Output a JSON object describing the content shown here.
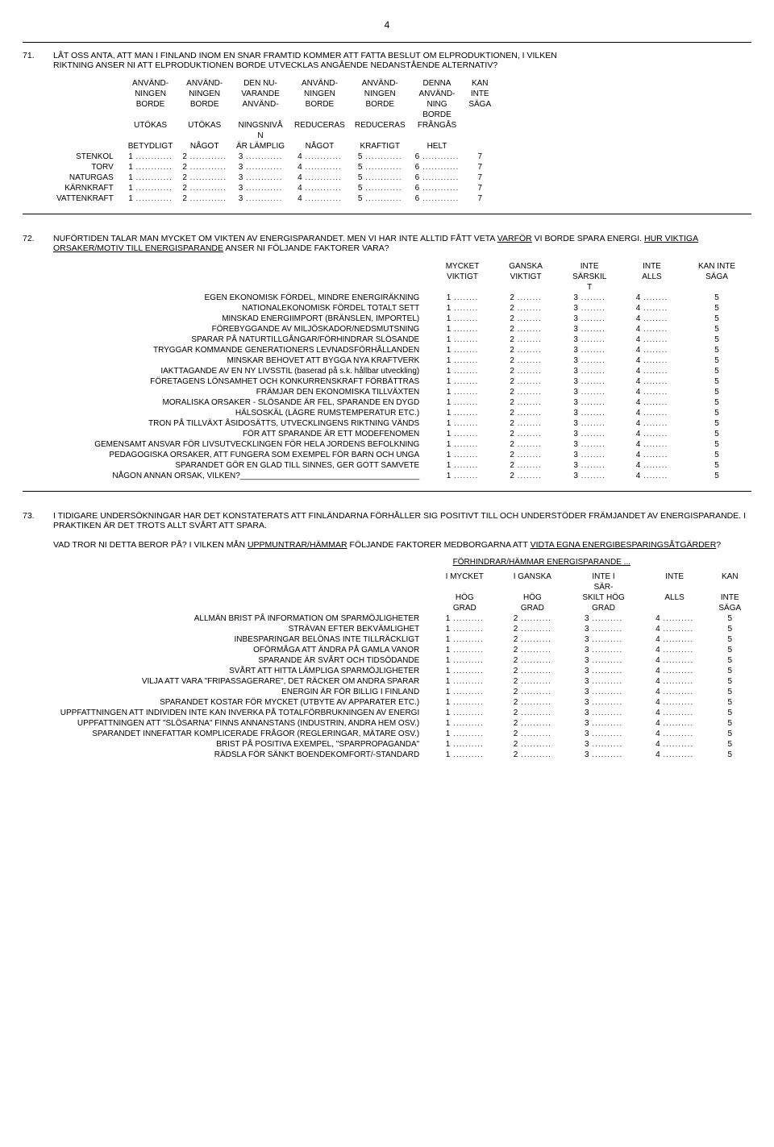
{
  "page_number": "4",
  "q71": {
    "number": "71.",
    "text_line1": "LÅT OSS ANTA, ATT MAN I FINLAND INOM EN SNAR FRAMTID KOMMER ATT FATTA BESLUT OM ELPRODUKTIONEN, I VILKEN",
    "text_line2": "RIKTNING ANSER NI ATT ELPRODUKTIONEN BORDE UTVECKLAS ANGÅENDE NEDANSTÅENDE ALTERNATIV?",
    "header_rows": [
      [
        "ANVÄND-",
        "ANVÄND-",
        "DEN NU-",
        "ANVÄND-",
        "ANVÄND-",
        "DENNA",
        "KAN"
      ],
      [
        "NINGEN",
        "NINGEN",
        "VARANDE",
        "NINGEN",
        "NINGEN",
        "ANVÄND-",
        "INTE"
      ],
      [
        "BORDE",
        "BORDE",
        "ANVÄND-",
        "BORDE",
        "BORDE",
        "NING",
        "SÄGA"
      ],
      [
        "",
        "",
        "",
        "",
        "",
        "BORDE",
        ""
      ],
      [
        "UTÖKAS",
        "UTÖKAS",
        "NINGSNIVÅ",
        "REDUCERAS",
        "REDUCERAS",
        "FRÅNGÅS",
        ""
      ],
      [
        "",
        "",
        "N",
        "",
        "",
        "",
        ""
      ],
      [
        "BETYDLIGT",
        "NÅGOT",
        "ÄR LÄMPLIG",
        "NÅGOT",
        "KRAFTIGT",
        "HELT",
        ""
      ]
    ],
    "rows": [
      {
        "label": "STENKOL",
        "values": [
          "1",
          "2",
          "3",
          "4",
          "5",
          "6",
          "7"
        ]
      },
      {
        "label": "TORV",
        "values": [
          "1",
          "2",
          "3",
          "4",
          "5",
          "6",
          "7"
        ]
      },
      {
        "label": "NATURGAS",
        "values": [
          "1",
          "2",
          "3",
          "4",
          "5",
          "6",
          "7"
        ]
      },
      {
        "label": "KÄRNKRAFT",
        "values": [
          "1",
          "2",
          "3",
          "4",
          "5",
          "6",
          "7"
        ]
      },
      {
        "label": "VATTENKRAFT",
        "values": [
          "1",
          "2",
          "3",
          "4",
          "5",
          "6",
          "7"
        ]
      }
    ],
    "dots": " ............ "
  },
  "q72": {
    "number": "72.",
    "text_part1": "NUFÖRTIDEN TALAR MAN MYCKET OM VIKTEN AV ENERGISPARANDET.  MEN VI HAR INTE ALLTID FÅTT VETA ",
    "text_underlined1": "VARFÖR",
    "text_part2": " VI BORDE SPARA ENERGI.  ",
    "text_underlined2": "HUR VIKTIGA ORSAKER/MOTIV TILL ENERGISPARANDE",
    "text_part3": " ANSER NI FÖLJANDE FAKTORER VARA?",
    "headers": [
      [
        "MYCKET",
        "GANSKA",
        "INTE",
        "INTE",
        "KAN INTE"
      ],
      [
        "VIKTIGT",
        "VIKTIGT",
        "SÄRSKIL",
        "ALLS",
        "SÄGA"
      ],
      [
        "",
        "",
        "T",
        "",
        ""
      ]
    ],
    "rows": [
      "EGEN EKONOMISK FÖRDEL, MINDRE ENERGIRÄKNING",
      "NATIONALEKONOMISK FÖRDEL TOTALT SETT",
      "MINSKAD ENERGIIMPORT (BRÄNSLEN, IMPORTEL)",
      "FÖREBYGGANDE AV MILJÖSKADOR/NEDSMUTSNING",
      "SPARAR PÅ NATURTILLGÅNGAR/FÖRHINDRAR SLÖSANDE",
      "TRYGGAR KOMMANDE GENERATIONERS LEVNADSFÖRHÅLLANDEN",
      "MINSKAR BEHOVET ATT BYGGA NYA KRAFTVERK",
      "IAKTTAGANDE AV EN NY LIVSSTIL (baserad på s.k. hållbar utveckling)",
      "FÖRETAGENS LÖNSAMHET OCH KONKURRENSKRAFT FÖRBÄTTRAS",
      "FRÄMJAR DEN EKONOMISKA TILLVÄXTEN",
      "MORALISKA ORSAKER - SLÖSANDE ÄR FEL, SPARANDE EN DYGD",
      "HÄLSOSKÄL (LÄGRE RUMSTEMPERATUR ETC.)",
      "TRON PÅ TILLVÄXT ÅSIDOSÄTTS, UTVECKLINGENS RIKTNING VÄNDS",
      "FÖR ATT SPARANDE ÄR ETT MODEFENOMEN",
      "GEMENSAMT ANSVAR FÖR LIVSUTVECKLINGEN FÖR HELA JORDENS BEFOLKNING",
      "PEDAGOGISKA ORSAKER, ATT FUNGERA SOM EXEMPEL FÖR BARN OCH UNGA",
      "SPARANDET GÖR EN GLAD TILL SINNES, GER GOTT SAMVETE",
      "NÅGON ANNAN ORSAK, VILKEN?________________________________________"
    ],
    "values": [
      "1",
      "2",
      "3",
      "4",
      "5"
    ],
    "dots": " ........ "
  },
  "q73": {
    "number": "73.",
    "text_line1": "I TIDIGARE UNDERSÖKNINGAR HAR DET KONSTATERATS ATT FINLÄNDARNA FÖRHÅLLER SIG POSITIVT TILL OCH UNDERSTÖDER FRÄMJANDET AV ENERGISPARANDE.  I PRAKTIKEN ÄR DET TROTS ALLT SVÅRT ATT SPARA.",
    "sub_part1": "VAD TROR NI DETTA BEROR PÅ?  I VILKEN MÅN ",
    "sub_underlined1": "UPPMUNTRAR/HÄMMAR",
    "sub_part2": " FÖLJANDE FAKTORER MEDBORGARNA ATT ",
    "sub_underlined2": "VIDTA EGNA ENERGIBESPARINGSÅTGÄRDER",
    "sub_part3": "?",
    "section_title": "FÖRHINDRAR/HÄMMAR ENERGISPARANDE ...",
    "headers_top": [
      "I MYCKET",
      "I GANSKA",
      "INTE I",
      "INTE",
      "KAN"
    ],
    "headers_mid": [
      "",
      "",
      "SÄR-",
      "",
      ""
    ],
    "headers_bot": [
      "HÖG",
      "HÖG",
      "SKILT HÖG",
      "ALLS",
      "INTE"
    ],
    "headers_bot2": [
      "GRAD",
      "GRAD",
      "GRAD",
      "",
      "SÄGA"
    ],
    "rows": [
      "ALLMÄN BRIST PÅ INFORMATION OM SPARMÖJLIGHETER",
      "STRÄVAN EFTER BEKVÄMLIGHET",
      "INBESPARINGAR BELÖNAS INTE TILLRÄCKLIGT",
      "OFÖRMÅGA ATT ÄNDRA PÅ GAMLA VANOR",
      "SPARANDE ÄR SVÅRT OCH TIDSÖDANDE",
      "SVÅRT ATT HITTA LÄMPLIGA SPARMÖJLIGHETER",
      "VILJA ATT VARA \"FRIPASSAGERARE\", DET RÄCKER OM ANDRA SPARAR",
      "ENERGIN ÄR FÖR BILLIG I FINLAND",
      "SPARANDET KOSTAR FÖR MYCKET (UTBYTE AV APPARATER ETC.)",
      "UPPFATTNINGEN ATT INDIVIDEN INTE KAN INVERKA PÅ TOTALFÖRBRUKNINGEN AV ENERGI",
      "UPPFATTNINGEN ATT \"SLÖSARNA\" FINNS ANNANSTANS (INDUSTRIN, ANDRA HEM OSV.)",
      "SPARANDET INNEFATTAR KOMPLICERADE FRÅGOR (REGLERINGAR, MÄTARE OSV.)",
      "BRIST PÅ POSITIVA EXEMPEL, \"SPARPROPAGANDA\"",
      "RÄDSLA FÖR SÄNKT BOENDEKOMFORT/-STANDARD"
    ],
    "values": [
      "1",
      "2",
      "3",
      "4",
      "5"
    ],
    "dots": " .......... "
  }
}
